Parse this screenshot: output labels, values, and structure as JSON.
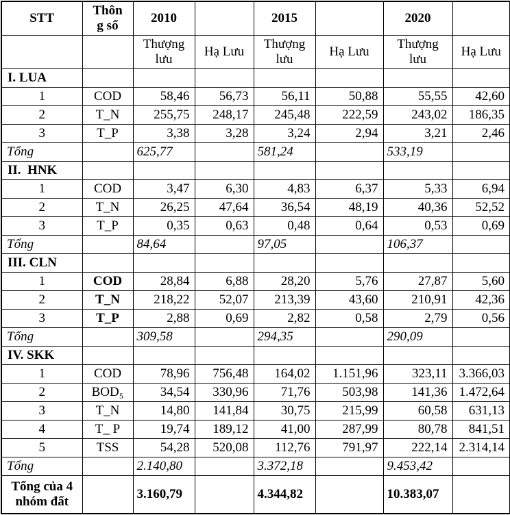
{
  "page": {
    "background_color": "#ffffff",
    "text_color": "#000000",
    "border_color": "#000000"
  },
  "table": {
    "header_row1": [
      "STT",
      "Thôn\ng số",
      "2010",
      "",
      "2015",
      "",
      "2020",
      ""
    ],
    "header_row2": [
      "",
      "",
      "Thượng\nlưu",
      "Hạ Lưu",
      "Thượng\nlưu",
      "Hạ Lưu",
      "Thượng\nlưu",
      "Hạ Lưu"
    ],
    "sections": [
      {
        "title": "I. LUA",
        "bold_params": false,
        "rows": [
          {
            "stt": "1",
            "param": "COD",
            "values": [
              "58,46",
              "56,73",
              "56,11",
              "50,88",
              "55,55",
              "42,60"
            ]
          },
          {
            "stt": "2",
            "param": "T_N",
            "values": [
              "255,75",
              "248,17",
              "245,48",
              "222,59",
              "243,02",
              "186,35"
            ]
          },
          {
            "stt": "3",
            "param": "T_P",
            "values": [
              "3,38",
              "3,28",
              "3,24",
              "2,94",
              "3,21",
              "2,46"
            ]
          }
        ],
        "total": {
          "label": "Tổng",
          "values": [
            "625,77",
            "581,24",
            "533,19"
          ]
        }
      },
      {
        "title": "II.  HNK",
        "bold_params": false,
        "rows": [
          {
            "stt": "1",
            "param": "COD",
            "values": [
              "3,47",
              "6,30",
              "4,83",
              "6,37",
              "5,33",
              "6,94"
            ]
          },
          {
            "stt": "2",
            "param": "T_N",
            "values": [
              "26,25",
              "47,64",
              "36,54",
              "48,19",
              "40,36",
              "52,52"
            ]
          },
          {
            "stt": "3",
            "param": "T_P",
            "values": [
              "0,35",
              "0,63",
              "0,48",
              "0,64",
              "0,53",
              "0,69"
            ]
          }
        ],
        "total": {
          "label": "Tổng",
          "values": [
            "84,64",
            "97,05",
            "106,37"
          ]
        }
      },
      {
        "title": "III. CLN",
        "bold_params": true,
        "rows": [
          {
            "stt": "1",
            "param": "COD",
            "values": [
              "28,84",
              "6,88",
              "28,20",
              "5,76",
              "27,87",
              "5,60"
            ]
          },
          {
            "stt": "2",
            "param": "T_N",
            "values": [
              "218,22",
              "52,07",
              "213,39",
              "43,60",
              "210,91",
              "42,36"
            ]
          },
          {
            "stt": "3",
            "param": "T_P",
            "values": [
              "2,88",
              "0,69",
              "2,82",
              "0,58",
              "2,79",
              "0,56"
            ]
          }
        ],
        "total": {
          "label": "Tổng",
          "values": [
            "309,58",
            "294,35",
            "290,09"
          ]
        }
      },
      {
        "title": "IV. SKK",
        "bold_params": false,
        "rows": [
          {
            "stt": "1",
            "param": "COD",
            "values": [
              "78,96",
              "756,48",
              "164,02",
              "1.151,96",
              "323,11",
              "3.366,03"
            ]
          },
          {
            "stt": "2",
            "param": "BOD₅",
            "values": [
              "34,54",
              "330,96",
              "71,76",
              "503,98",
              "141,36",
              "1.472,64"
            ]
          },
          {
            "stt": "3",
            "param": "T_N",
            "values": [
              "14,80",
              "141,84",
              "30,75",
              "215,99",
              "60,58",
              "631,13"
            ]
          },
          {
            "stt": "4",
            "param": "T_ P",
            "values": [
              "19,74",
              "189,12",
              "41,00",
              "287,99",
              "80,78",
              "841,51"
            ]
          },
          {
            "stt": "5",
            "param": "TSS",
            "values": [
              "54,28",
              "520,08",
              "112,76",
              "791,97",
              "222,14",
              "2.314,14"
            ]
          }
        ],
        "total": {
          "label": "Tổng",
          "values": [
            "2.140,80",
            "3.372,18",
            "9.453,42"
          ]
        }
      }
    ],
    "grand_total": {
      "label": "Tổng của 4 nhóm đất",
      "values": [
        "3.160,79",
        "4.344,82",
        "10.383,07"
      ]
    }
  }
}
